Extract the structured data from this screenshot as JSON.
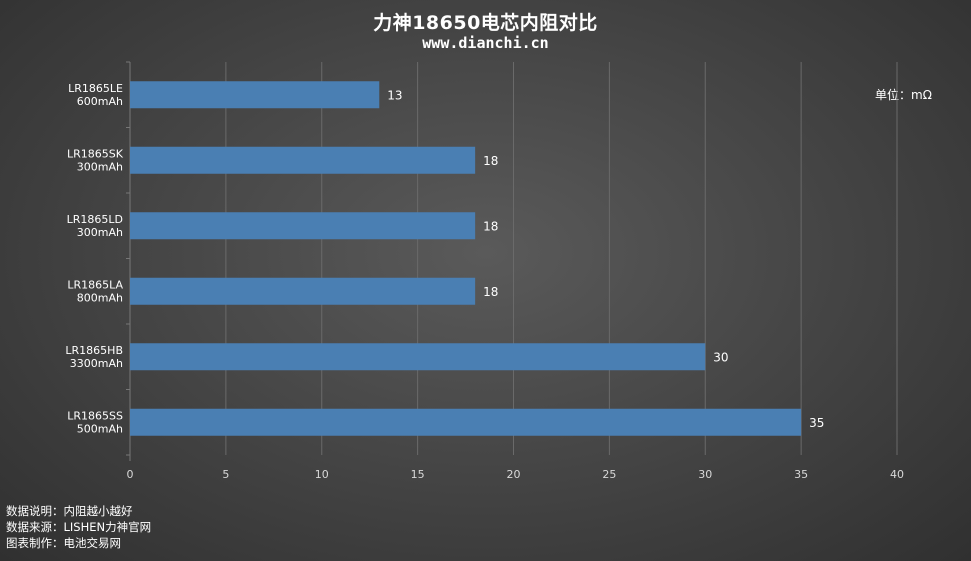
{
  "title": "力神18650电芯内阻对比",
  "subtitle": "www.dianchi.cn",
  "unit_note": "单位：mΩ",
  "footer": [
    {
      "key": "数据说明：",
      "value": "内阻越小越好"
    },
    {
      "key": "数据来源：",
      "value": "LISHEN力神官网"
    },
    {
      "key": "图表制作：",
      "value": "电池交易网"
    }
  ],
  "colors": {
    "bar": "#4a7fb3",
    "text": "#ffffff",
    "grid": "#6a6a6a",
    "tick_label": "#d8d8d8"
  },
  "chart_data": {
    "type": "bar",
    "orientation": "horizontal",
    "categories": [
      [
        "LR1865LE",
        "600mAh"
      ],
      [
        "LR1865SK",
        "300mAh"
      ],
      [
        "LR1865LD",
        "300mAh"
      ],
      [
        "LR1865LA",
        "800mAh"
      ],
      [
        "LR1865HB",
        "3300mAh"
      ],
      [
        "LR1865SS",
        "500mAh"
      ]
    ],
    "values": [
      13,
      18,
      18,
      18,
      30,
      35
    ],
    "xlim": [
      0,
      40
    ],
    "xticks": [
      0,
      5,
      10,
      15,
      20,
      25,
      30,
      35,
      40
    ],
    "grid": "vertical",
    "data_labels": true,
    "legend": "none"
  }
}
